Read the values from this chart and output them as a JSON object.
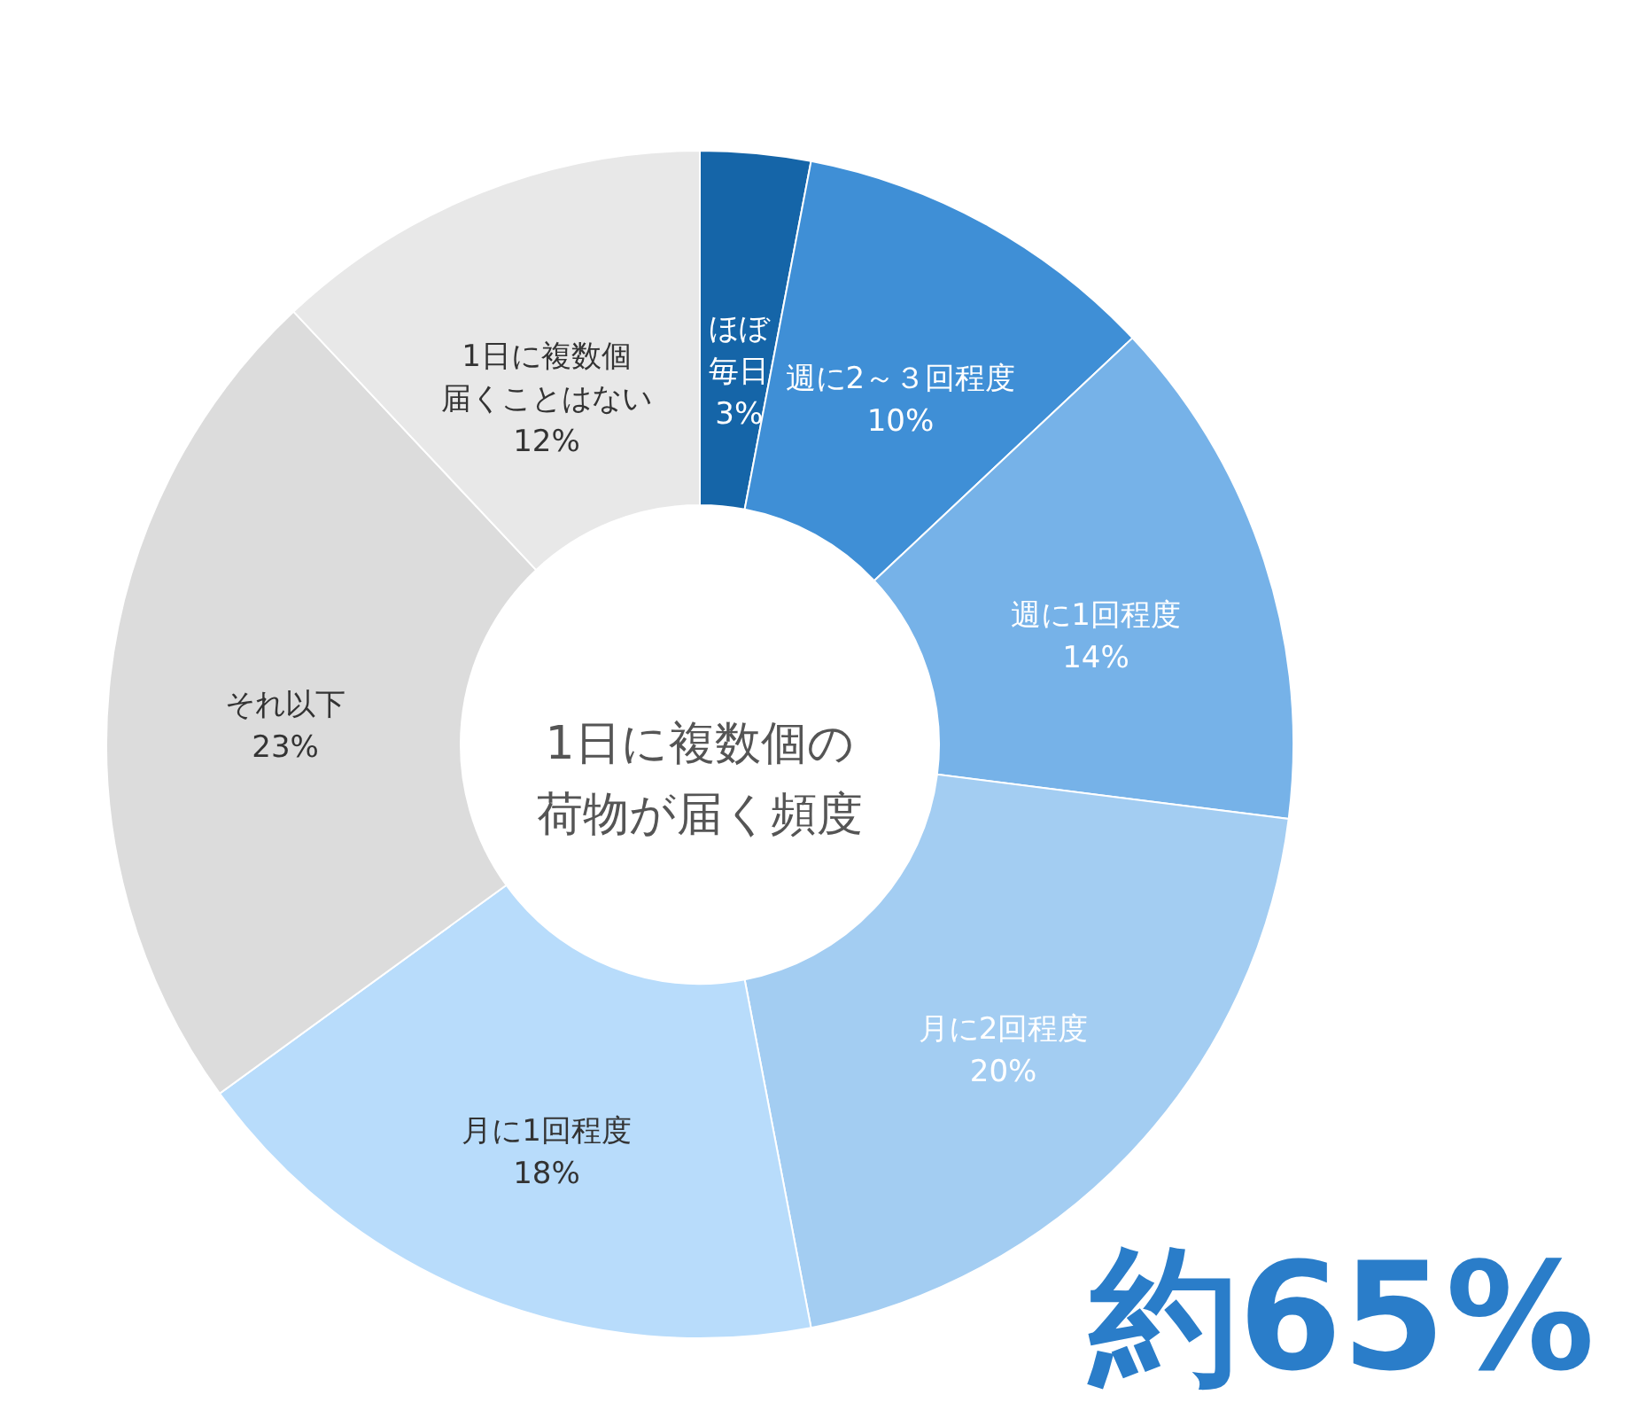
{
  "chart_data": {
    "type": "donut",
    "title": "1日に複数個の荷物が届く頻度",
    "categories": [
      "ほぼ毎日",
      "週に2～３回程度",
      "週に1回程度",
      "月に2回程度",
      "月に1回程度",
      "それ以下",
      "1日に複数個届くことはない"
    ],
    "values": [
      3,
      10,
      14,
      20,
      18,
      23,
      12
    ],
    "value_labels": [
      "3%",
      "10%",
      "14%",
      "20%",
      "18%",
      "23%",
      "12%"
    ],
    "colors": [
      "#1565a8",
      "#3f8fd6",
      "#76b2e8",
      "#a3cdf2",
      "#b8dcfb",
      "#dcdcdc",
      "#e8e8e8"
    ],
    "annotations": [
      "約65%"
    ]
  }
}
